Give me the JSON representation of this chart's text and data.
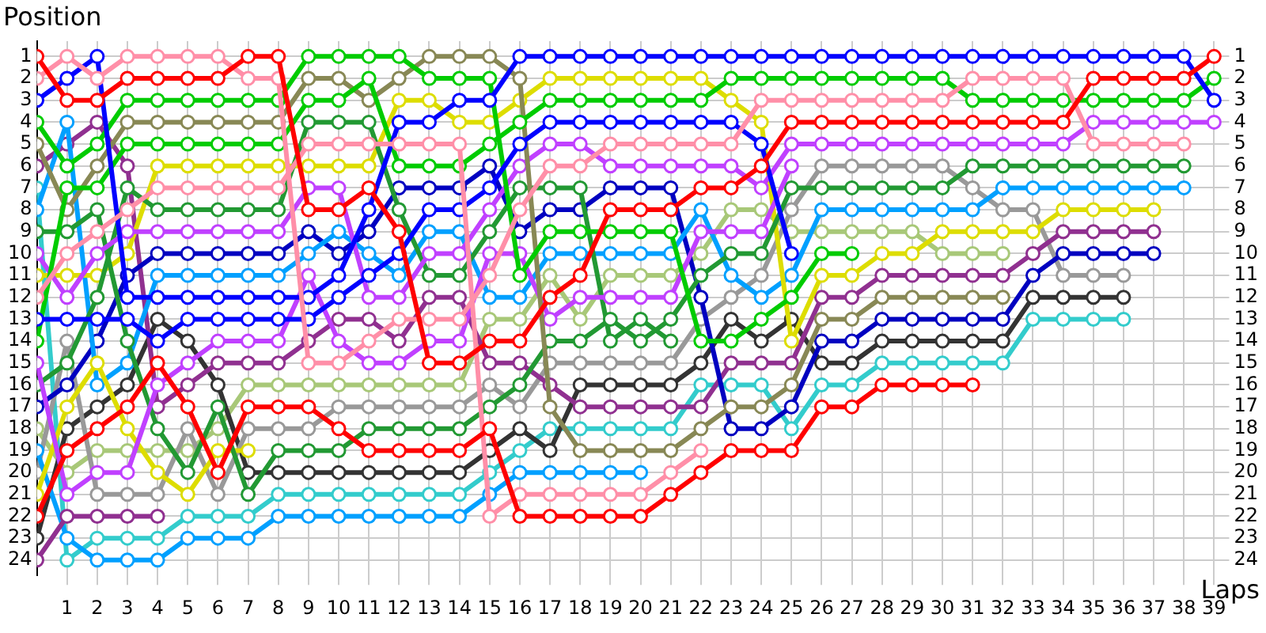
{
  "chart_data": {
    "type": "line",
    "xlabel": "Laps",
    "ylabel": "Position",
    "marker": "circle",
    "grid": true,
    "legend": false,
    "x": [
      0,
      1,
      2,
      3,
      4,
      5,
      6,
      7,
      8,
      9,
      10,
      11,
      12,
      13,
      14,
      15,
      16,
      17,
      18,
      19,
      20,
      21,
      22,
      23,
      24,
      25,
      26,
      27,
      28,
      29,
      30,
      31,
      32,
      33,
      34,
      35,
      36,
      37,
      38,
      39
    ],
    "xlim": [
      0,
      39.5
    ],
    "xticks": [
      1,
      2,
      3,
      4,
      5,
      6,
      7,
      8,
      9,
      10,
      11,
      12,
      13,
      14,
      15,
      16,
      17,
      18,
      19,
      20,
      21,
      22,
      23,
      24,
      25,
      26,
      27,
      28,
      29,
      30,
      31,
      32,
      33,
      34,
      35,
      36,
      37,
      38,
      39
    ],
    "ylim": [
      24.7,
      0.3
    ],
    "yticks": [
      1,
      2,
      3,
      4,
      5,
      6,
      7,
      8,
      9,
      10,
      11,
      12,
      13,
      14,
      15,
      16,
      17,
      18,
      19,
      20,
      21,
      22,
      23,
      24
    ],
    "y2lim": [
      24.7,
      0.3
    ],
    "y2ticks": [
      1,
      2,
      3,
      4,
      5,
      6,
      7,
      8,
      9,
      10,
      11,
      12,
      13,
      14,
      15,
      16,
      17,
      18,
      19,
      20,
      21,
      22,
      23,
      24
    ],
    "series": [
      {
        "color": "#ff0000",
        "values": [
          1,
          3,
          3,
          2,
          2,
          2,
          2,
          1,
          1,
          8,
          8,
          7,
          9,
          15,
          15,
          14,
          14,
          12,
          11,
          8,
          8,
          8,
          7,
          7,
          6,
          4,
          4,
          4,
          4,
          4,
          4,
          4,
          4,
          4,
          4,
          2,
          2,
          2,
          2,
          1
        ]
      },
      {
        "color": "#ff0000",
        "values": [
          22,
          19,
          18,
          17,
          15,
          17,
          20,
          17,
          17,
          17,
          18,
          19,
          19,
          19,
          19,
          18,
          22,
          22,
          22,
          22,
          22,
          21,
          20,
          19,
          19,
          19,
          17,
          17,
          16,
          16,
          16,
          16,
          null,
          null,
          null,
          null,
          null,
          null,
          null,
          null
        ]
      },
      {
        "color": "#ff8fa8",
        "values": [
          2,
          1,
          2,
          1,
          1,
          1,
          1,
          2,
          2,
          15,
          15,
          14,
          13,
          13,
          13,
          11,
          8,
          6,
          6,
          5,
          5,
          5,
          5,
          5,
          3,
          3,
          3,
          3,
          3,
          3,
          3,
          2,
          2,
          2,
          2,
          5,
          5,
          5,
          5,
          null
        ]
      },
      {
        "color": "#ff8fa8",
        "values": [
          12,
          10,
          9,
          8,
          7,
          7,
          7,
          7,
          7,
          5,
          5,
          5,
          5,
          5,
          5,
          22,
          21,
          21,
          21,
          21,
          21,
          20,
          19,
          null,
          null,
          null,
          null,
          null,
          null,
          null,
          null,
          null,
          null,
          null,
          null,
          null,
          null,
          null,
          null,
          null
        ]
      },
      {
        "color": "#0000ff",
        "values": [
          3,
          2,
          1,
          12,
          12,
          12,
          12,
          12,
          12,
          12,
          11,
          8,
          4,
          4,
          3,
          3,
          1,
          1,
          1,
          1,
          1,
          1,
          1,
          1,
          1,
          1,
          1,
          1,
          1,
          1,
          1,
          1,
          1,
          1,
          1,
          1,
          1,
          1,
          1,
          3
        ]
      },
      {
        "color": "#0000ff",
        "values": [
          13,
          13,
          13,
          13,
          14,
          13,
          13,
          13,
          13,
          13,
          12,
          11,
          10,
          8,
          8,
          7,
          5,
          4,
          4,
          4,
          4,
          4,
          4,
          4,
          5,
          10,
          null,
          null,
          null,
          null,
          null,
          null,
          null,
          null,
          null,
          null,
          null,
          null,
          null,
          null
        ]
      },
      {
        "color": "#00cc00",
        "values": [
          14,
          7,
          7,
          5,
          5,
          5,
          5,
          5,
          5,
          3,
          3,
          2,
          6,
          6,
          6,
          5,
          4,
          3,
          3,
          3,
          3,
          3,
          3,
          2,
          2,
          2,
          2,
          2,
          2,
          2,
          2,
          3,
          3,
          3,
          3,
          3,
          3,
          3,
          3,
          2
        ]
      },
      {
        "color": "#00cc00",
        "values": [
          4,
          6,
          5,
          3,
          3,
          3,
          3,
          3,
          3,
          1,
          1,
          1,
          1,
          2,
          2,
          2,
          11,
          9,
          9,
          9,
          9,
          9,
          14,
          14,
          13,
          12,
          10,
          10,
          null,
          null,
          null,
          null,
          null,
          null,
          null,
          null,
          null,
          null,
          null,
          null
        ]
      },
      {
        "color": "#888855",
        "values": [
          5,
          8,
          6,
          4,
          4,
          4,
          4,
          4,
          4,
          2,
          2,
          3,
          2,
          1,
          1,
          1,
          2,
          17,
          19,
          19,
          19,
          19,
          18,
          17,
          17,
          16,
          13,
          13,
          12,
          12,
          12,
          12,
          12,
          null,
          null,
          null,
          null,
          null,
          null,
          null
        ]
      },
      {
        "color": "#903090",
        "values": [
          24,
          22,
          22,
          22,
          22,
          null,
          null,
          null,
          null,
          null,
          null,
          null,
          null,
          null,
          null,
          null,
          null,
          null,
          null,
          null,
          null,
          null,
          null,
          null,
          null,
          null,
          null,
          null,
          null,
          null,
          null,
          null,
          null,
          null,
          null,
          null,
          null,
          null,
          null,
          null
        ]
      },
      {
        "color": "#c040ff",
        "values": [
          10,
          12,
          10,
          9,
          9,
          9,
          9,
          9,
          9,
          7,
          7,
          12,
          12,
          10,
          10,
          8,
          6,
          5,
          5,
          6,
          6,
          6,
          6,
          6,
          7,
          5,
          5,
          5,
          5,
          5,
          5,
          5,
          5,
          5,
          5,
          4,
          4,
          4,
          4,
          4
        ]
      },
      {
        "color": "#c040ff",
        "values": [
          15,
          21,
          20,
          20,
          16,
          15,
          14,
          14,
          14,
          11,
          14,
          15,
          15,
          14,
          14,
          10,
          10,
          13,
          12,
          12,
          12,
          12,
          9,
          9,
          9,
          6,
          null,
          null,
          null,
          null,
          null,
          null,
          null,
          null,
          null,
          null,
          null,
          null,
          null,
          null
        ]
      },
      {
        "color": "#229933",
        "values": [
          9,
          9,
          8,
          14,
          18,
          20,
          17,
          21,
          19,
          19,
          19,
          18,
          18,
          18,
          18,
          17,
          16,
          14,
          14,
          13,
          14,
          13,
          11,
          10,
          10,
          7,
          7,
          7,
          7,
          7,
          7,
          6,
          6,
          6,
          6,
          6,
          6,
          6,
          6,
          null
        ]
      },
      {
        "color": "#229933",
        "values": [
          16,
          15,
          12,
          7,
          8,
          8,
          8,
          8,
          8,
          4,
          4,
          4,
          8,
          11,
          11,
          9,
          7,
          7,
          7,
          14,
          13,
          14,
          null,
          null,
          null,
          null,
          null,
          null,
          null,
          null,
          null,
          null,
          null,
          null,
          null,
          null,
          null,
          null,
          null,
          null
        ]
      },
      {
        "color": "#dddd00",
        "values": [
          11,
          11,
          11,
          10,
          6,
          6,
          6,
          6,
          6,
          6,
          6,
          6,
          3,
          3,
          4,
          4,
          3,
          2,
          2,
          2,
          2,
          2,
          2,
          3,
          4,
          14,
          11,
          11,
          10,
          10,
          9,
          9,
          9,
          9,
          8,
          8,
          8,
          8,
          null,
          null
        ]
      },
      {
        "color": "#dddd00",
        "values": [
          21,
          17,
          15,
          18,
          20,
          21,
          19,
          19,
          null,
          null,
          null,
          null,
          null,
          null,
          null,
          null,
          null,
          null,
          null,
          null,
          null,
          null,
          null,
          null,
          null,
          null,
          null,
          null,
          null,
          null,
          null,
          null,
          null,
          null,
          null,
          null,
          null,
          null,
          null,
          null
        ]
      },
      {
        "color": "#00a0ff",
        "values": [
          8,
          4,
          16,
          15,
          11,
          11,
          11,
          11,
          11,
          10,
          9,
          10,
          11,
          9,
          9,
          12,
          12,
          10,
          10,
          10,
          10,
          10,
          8,
          11,
          12,
          11,
          8,
          8,
          8,
          8,
          8,
          8,
          7,
          7,
          7,
          7,
          7,
          7,
          7,
          null
        ]
      },
      {
        "color": "#00a0ff",
        "values": [
          19,
          23,
          24,
          24,
          24,
          23,
          23,
          23,
          22,
          22,
          22,
          22,
          22,
          22,
          22,
          21,
          20,
          20,
          20,
          20,
          20,
          null,
          null,
          null,
          null,
          null,
          null,
          null,
          null,
          null,
          null,
          null,
          null,
          null,
          null,
          null,
          null,
          null,
          null,
          null
        ]
      },
      {
        "color": "#0000c0",
        "values": [
          17,
          16,
          14,
          11,
          10,
          10,
          10,
          10,
          10,
          9,
          10,
          9,
          7,
          7,
          7,
          6,
          9,
          8,
          8,
          7,
          7,
          7,
          12,
          18,
          18,
          17,
          14,
          14,
          13,
          13,
          13,
          13,
          13,
          11,
          10,
          10,
          10,
          10,
          null,
          null
        ]
      },
      {
        "color": "#903090",
        "values": [
          6,
          5,
          4,
          6,
          17,
          16,
          15,
          15,
          15,
          14,
          13,
          13,
          14,
          12,
          12,
          15,
          15,
          16,
          17,
          17,
          17,
          17,
          17,
          15,
          15,
          15,
          12,
          12,
          11,
          11,
          11,
          11,
          11,
          10,
          9,
          9,
          9,
          9,
          null,
          null
        ]
      },
      {
        "color": "#999999",
        "values": [
          20,
          14,
          21,
          21,
          21,
          18,
          21,
          18,
          18,
          18,
          17,
          17,
          17,
          17,
          17,
          16,
          17,
          15,
          15,
          15,
          15,
          15,
          13,
          12,
          11,
          8,
          6,
          6,
          6,
          6,
          6,
          7,
          8,
          8,
          11,
          11,
          11,
          null,
          null,
          null
        ]
      },
      {
        "color": "#333333",
        "values": [
          23,
          18,
          17,
          16,
          13,
          14,
          16,
          20,
          20,
          20,
          20,
          20,
          20,
          20,
          20,
          19,
          18,
          19,
          16,
          16,
          16,
          16,
          15,
          13,
          14,
          13,
          15,
          15,
          14,
          14,
          14,
          14,
          14,
          12,
          12,
          12,
          12,
          null,
          null,
          null
        ]
      },
      {
        "color": "#a8c878",
        "values": [
          18,
          20,
          19,
          19,
          19,
          19,
          18,
          16,
          16,
          16,
          16,
          16,
          16,
          16,
          16,
          13,
          13,
          11,
          13,
          11,
          11,
          11,
          10,
          8,
          8,
          9,
          9,
          9,
          9,
          9,
          10,
          10,
          10,
          null,
          null,
          null,
          null,
          null,
          null,
          null
        ]
      },
      {
        "color": "#33cccc",
        "values": [
          7,
          24,
          23,
          23,
          23,
          22,
          22,
          22,
          21,
          21,
          21,
          21,
          21,
          21,
          21,
          20,
          19,
          18,
          18,
          18,
          18,
          18,
          16,
          16,
          16,
          18,
          16,
          16,
          15,
          15,
          15,
          15,
          15,
          13,
          13,
          13,
          13,
          null,
          null,
          null
        ]
      }
    ]
  }
}
